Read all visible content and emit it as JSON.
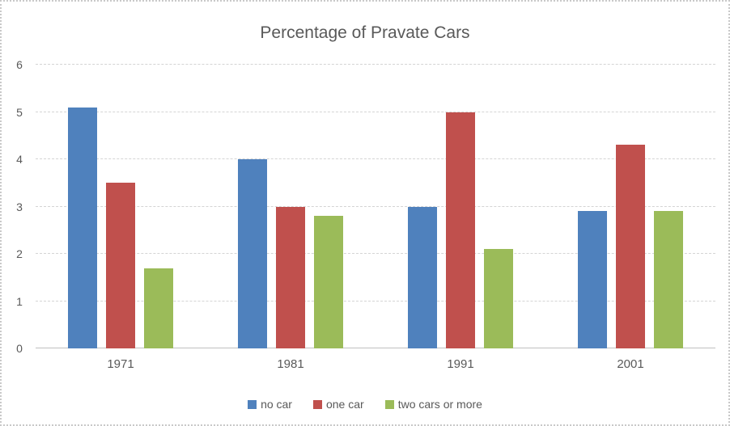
{
  "chart_data": {
    "type": "bar",
    "title": "Percentage of Pravate Cars",
    "categories": [
      "1971",
      "1981",
      "1991",
      "2001"
    ],
    "series": [
      {
        "name": "no car",
        "color": "#4F81BD",
        "values": [
          5.1,
          4.0,
          3.0,
          2.9
        ]
      },
      {
        "name": "one car",
        "color": "#C0504D",
        "values": [
          3.5,
          3.0,
          5.0,
          4.3
        ]
      },
      {
        "name": "two cars or more",
        "color": "#9BBB59",
        "values": [
          1.7,
          2.8,
          2.1,
          2.9
        ]
      }
    ],
    "xlabel": "",
    "ylabel": "",
    "ylim": [
      0,
      6
    ],
    "yticks": [
      "0",
      "1",
      "2",
      "3",
      "4",
      "5",
      "6"
    ],
    "grid": "horizontal-dashed",
    "legend_position": "bottom"
  },
  "colors": {
    "text": "#595959",
    "gridline": "#D4D4D4",
    "axis_line": "#BFBFBF",
    "frame_border": "#C9C9C9",
    "background": "#FFFFFF"
  }
}
